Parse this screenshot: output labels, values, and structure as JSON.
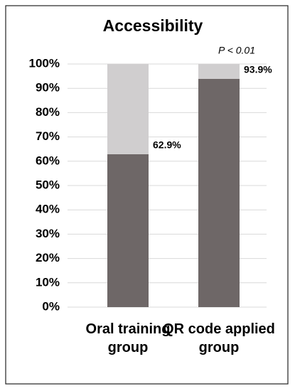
{
  "chart_data": {
    "type": "stacked-bar",
    "title": "Accessibility",
    "categories": [
      "Oral training group",
      "QR code applied group"
    ],
    "series": [
      {
        "color": "#6e6767",
        "values": [
          62.9,
          93.9
        ],
        "value_labels": [
          "62.9%",
          "93.9%"
        ]
      },
      {
        "color": "#d0cecf",
        "values": [
          37.1,
          6.1
        ]
      }
    ],
    "ylim": [
      0,
      100
    ],
    "yticks": [
      {
        "value": 0,
        "label": "0%"
      },
      {
        "value": 10,
        "label": "10%"
      },
      {
        "value": 20,
        "label": "20%"
      },
      {
        "value": 30,
        "label": "30%"
      },
      {
        "value": 40,
        "label": "40%"
      },
      {
        "value": 50,
        "label": "50%"
      },
      {
        "value": 60,
        "label": "60%"
      },
      {
        "value": 70,
        "label": "70%"
      },
      {
        "value": 80,
        "label": "80%"
      },
      {
        "value": 90,
        "label": "90%"
      },
      {
        "value": 100,
        "label": "100%"
      }
    ],
    "grid": true,
    "annotation": "P < 0.01"
  }
}
